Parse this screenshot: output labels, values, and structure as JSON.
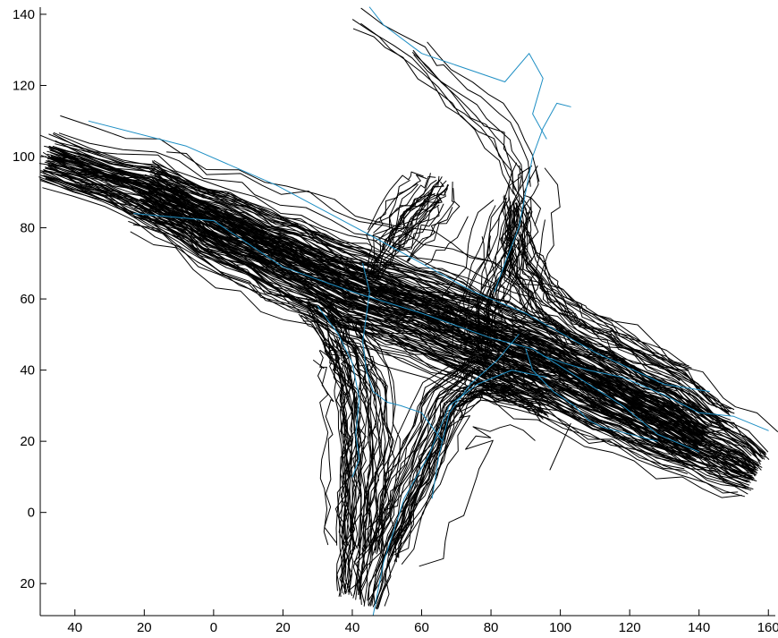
{
  "chart_data": {
    "type": "line",
    "title": "",
    "xlabel": "",
    "ylabel": "",
    "xlim": [
      -50,
      162
    ],
    "ylim": [
      -29,
      142
    ],
    "grid": false,
    "legend": "none",
    "x_ticks": [
      {
        "value": -40,
        "label": "40"
      },
      {
        "value": -20,
        "label": "20"
      },
      {
        "value": 0,
        "label": "0"
      },
      {
        "value": 20,
        "label": "20"
      },
      {
        "value": 40,
        "label": "40"
      },
      {
        "value": 60,
        "label": "60"
      },
      {
        "value": 80,
        "label": "80"
      },
      {
        "value": 100,
        "label": "100"
      },
      {
        "value": 120,
        "label": "120"
      },
      {
        "value": 140,
        "label": "140"
      },
      {
        "value": 160,
        "label": "160"
      }
    ],
    "y_ticks": [
      {
        "value": -20,
        "label": "20"
      },
      {
        "value": 0,
        "label": "0"
      },
      {
        "value": 20,
        "label": "20"
      },
      {
        "value": 40,
        "label": "40"
      },
      {
        "value": 60,
        "label": "60"
      },
      {
        "value": 80,
        "label": "80"
      },
      {
        "value": 100,
        "label": "100"
      },
      {
        "value": 120,
        "label": "120"
      },
      {
        "value": 140,
        "label": "140"
      }
    ],
    "colors": {
      "observed": "#000000",
      "predicted": "#1f8fc4"
    },
    "bundles": [
      {
        "group": "observed",
        "count": 150,
        "spread": 5,
        "path": [
          [
            -48,
            99
          ],
          [
            -20,
            90
          ],
          [
            0,
            80
          ],
          [
            20,
            71
          ],
          [
            40,
            62
          ],
          [
            60,
            55
          ],
          [
            80,
            47
          ],
          [
            100,
            39
          ],
          [
            120,
            29
          ],
          [
            140,
            19
          ],
          [
            156,
            11
          ]
        ]
      },
      {
        "group": "observed",
        "count": 45,
        "spread": 4,
        "path": [
          [
            28,
            58
          ],
          [
            36,
            50
          ],
          [
            40,
            43
          ],
          [
            43,
            34
          ],
          [
            44,
            20
          ],
          [
            43,
            5
          ],
          [
            42,
            -10
          ],
          [
            40,
            -23
          ]
        ]
      },
      {
        "group": "observed",
        "count": 40,
        "spread": 4,
        "path": [
          [
            96,
            29
          ],
          [
            86,
            34
          ],
          [
            76,
            36
          ],
          [
            68,
            30
          ],
          [
            62,
            16
          ],
          [
            56,
            2
          ],
          [
            50,
            -12
          ],
          [
            46,
            -26
          ]
        ]
      },
      {
        "group": "observed",
        "count": 32,
        "spread": 3.5,
        "path": [
          [
            47,
            66
          ],
          [
            52,
            74
          ],
          [
            58,
            82
          ],
          [
            64,
            88
          ],
          [
            66,
            93
          ]
        ]
      },
      {
        "group": "observed",
        "count": 30,
        "spread": 3.5,
        "path": [
          [
            86,
            88
          ],
          [
            86,
            78
          ],
          [
            88,
            68
          ],
          [
            94,
            58
          ],
          [
            104,
            50
          ],
          [
            116,
            44
          ],
          [
            134,
            36
          ],
          [
            148,
            26
          ]
        ]
      },
      {
        "group": "observed",
        "count": 24,
        "spread": 3.5,
        "path": [
          [
            78,
            37
          ],
          [
            76,
            46
          ],
          [
            76,
            58
          ],
          [
            82,
            72
          ],
          [
            86,
            86
          ],
          [
            90,
            98
          ]
        ]
      },
      {
        "group": "observed",
        "count": 8,
        "spread": 2.5,
        "path": [
          [
            41,
            137
          ],
          [
            56,
            127
          ],
          [
            68,
            114
          ],
          [
            80,
            104
          ],
          [
            86,
            90
          ],
          [
            90,
            80
          ]
        ]
      }
    ],
    "series": [
      {
        "group": "predicted",
        "x": [
          -36,
          -8,
          18,
          45,
          60,
          75,
          90,
          110,
          130,
          143
        ],
        "y": [
          110,
          103,
          92,
          78,
          70,
          62,
          56,
          45,
          36,
          34
        ]
      },
      {
        "group": "predicted",
        "x": [
          -23,
          0,
          20,
          40,
          60,
          80,
          92,
          105,
          118,
          128,
          140
        ],
        "y": [
          84,
          82,
          69,
          62,
          56,
          49,
          46,
          38,
          30,
          22,
          17
        ]
      },
      {
        "group": "predicted",
        "x": [
          30,
          36,
          40,
          42,
          41,
          42,
          40
        ],
        "y": [
          58,
          50,
          42,
          32,
          22,
          15,
          10
        ]
      },
      {
        "group": "predicted",
        "x": [
          43,
          45,
          44,
          43,
          44,
          46,
          50,
          54,
          60,
          66
        ],
        "y": [
          70,
          62,
          55,
          48,
          40,
          34,
          31,
          30,
          28,
          20
        ]
      },
      {
        "group": "predicted",
        "x": [
          96,
          86,
          76,
          68,
          62,
          55,
          49,
          46
        ],
        "y": [
          38,
          40,
          36,
          30,
          16,
          4,
          -14,
          -29
        ]
      },
      {
        "group": "predicted",
        "x": [
          88,
          82,
          74,
          68,
          65,
          63
        ],
        "y": [
          50,
          43,
          36,
          28,
          16,
          4
        ]
      },
      {
        "group": "predicted",
        "x": [
          81,
          84,
          88,
          90,
          92,
          95,
          99,
          103
        ],
        "y": [
          62,
          70,
          80,
          90,
          100,
          108,
          115,
          114
        ]
      },
      {
        "group": "predicted",
        "x": [
          45,
          49,
          60,
          84,
          91,
          95,
          92,
          96
        ],
        "y": [
          142,
          137,
          129,
          121,
          129,
          122,
          112,
          105
        ]
      },
      {
        "group": "predicted",
        "x": [
          95,
          101,
          108,
          118,
          130,
          140,
          150,
          160
        ],
        "y": [
          44,
          42,
          40,
          38,
          33,
          28,
          27,
          23
        ]
      },
      {
        "group": "predicted",
        "x": [
          90,
          92,
          98,
          104,
          108,
          112,
          120,
          128
        ],
        "y": [
          46,
          40,
          34,
          30,
          26,
          24,
          22,
          20
        ]
      }
    ],
    "outliers": [
      {
        "group": "observed",
        "x": [
          97,
          103
        ],
        "y": [
          12,
          25
        ]
      },
      {
        "group": "observed",
        "x": [
          -50,
          -30,
          -10
        ],
        "y": [
          106,
          98,
          94
        ]
      },
      {
        "group": "observed",
        "x": [
          30,
          50,
          70,
          90
        ],
        "y": [
          66,
          58,
          48,
          46
        ]
      },
      {
        "group": "observed",
        "x": [
          130,
          145,
          155
        ],
        "y": [
          32,
          25,
          16
        ]
      }
    ]
  }
}
